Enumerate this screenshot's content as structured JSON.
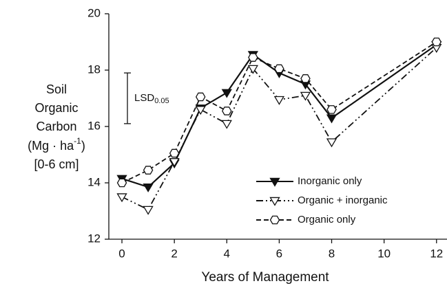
{
  "chart_data": {
    "type": "line",
    "xlabel": "Years of Management",
    "ylabel_lines": [
      "Soil",
      "Organic",
      "Carbon"
    ],
    "ylabel_unit": {
      "base": "(Mg · ha",
      "superscript": "-1",
      "close": ")"
    },
    "ylabel_depth": "[0-6 cm]",
    "x": [
      0,
      1,
      2,
      3,
      4,
      5,
      6,
      7,
      8,
      12
    ],
    "series": [
      {
        "name": "Inorganic only",
        "color": "#111111",
        "line_style": "solid",
        "marker": "triangle-down-filled",
        "values": [
          14.15,
          13.85,
          14.7,
          16.65,
          17.2,
          18.55,
          17.9,
          17.5,
          16.3,
          18.9
        ]
      },
      {
        "name": "Organic + inorganic",
        "color": "#111111",
        "line_style": "dashdot",
        "marker": "triangle-down-open",
        "values": [
          13.5,
          13.05,
          14.75,
          16.6,
          16.1,
          18.05,
          16.95,
          17.1,
          15.45,
          18.8
        ]
      },
      {
        "name": "Organic only",
        "color": "#111111",
        "line_style": "dashed",
        "marker": "hexagon-open",
        "values": [
          14.0,
          14.45,
          15.05,
          17.05,
          16.55,
          18.45,
          18.05,
          17.7,
          16.6,
          19.0
        ]
      }
    ],
    "annotation": {
      "text": "LSD",
      "subscript": "0.05",
      "low": 16.1,
      "high": 17.9
    },
    "xlim": [
      -0.5,
      12.4
    ],
    "xticks": [
      0,
      2,
      4,
      6,
      8,
      10,
      12
    ],
    "ylim": [
      12,
      20
    ],
    "yticks": [
      12,
      14,
      16,
      18,
      20
    ],
    "grid": false,
    "legend": "lower right"
  }
}
